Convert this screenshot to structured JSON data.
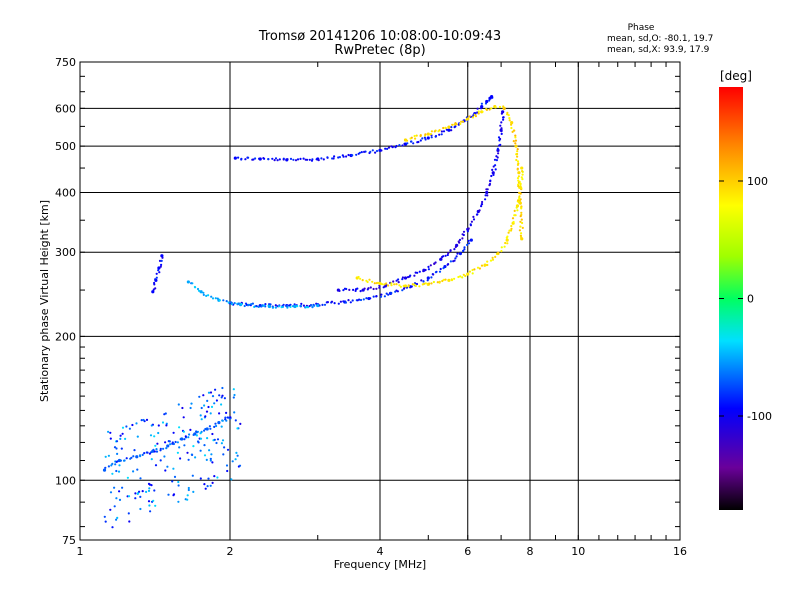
{
  "chart_data": {
    "type": "scatter",
    "title": "Tromsø 20141206 10:08:00-10:09:43",
    "subtitle": "RwPretec (8p)",
    "xlabel": "Frequency [MHz]",
    "ylabel": "Stationary phase Virtual Height [km]",
    "x_scale": "log",
    "y_scale": "log",
    "xlim": [
      1,
      16
    ],
    "ylim": [
      75,
      750
    ],
    "x_ticks": [
      1,
      2,
      4,
      6,
      8,
      10,
      16
    ],
    "x_tick_labels": [
      "1",
      "2",
      "4",
      "6",
      "8",
      "10",
      "16"
    ],
    "y_ticks": [
      75,
      100,
      200,
      300,
      400,
      500,
      600,
      750
    ],
    "y_tick_labels": [
      "75",
      "100",
      "200",
      "300",
      "400",
      "500",
      "600",
      "750"
    ],
    "grid": true,
    "phase_box": {
      "title": "Phase",
      "line_o": "mean, sd,O: -80.1, 19.7",
      "line_x": "mean, sd,X:  93.9, 17.9"
    },
    "colorbar": {
      "label": "[deg]",
      "range": [
        -180,
        180
      ],
      "ticks": [
        100,
        0,
        -100
      ],
      "tick_labels": [
        "100",
        "0",
        "-100"
      ]
    },
    "traces": [
      {
        "name": "O-F2 lower",
        "phase": -100,
        "f": [
          2.05,
          2.3,
          2.6,
          3.0,
          3.5,
          4.0,
          4.5,
          5.0,
          5.5,
          5.9,
          6.2,
          6.4,
          6.55,
          6.65,
          6.7
        ],
        "h": [
          472,
          470,
          468,
          470,
          478,
          490,
          505,
          520,
          540,
          565,
          585,
          605,
          620,
          630,
          635
        ]
      },
      {
        "name": "O-F2 upper",
        "phase": -110,
        "f": [
          3.3,
          3.7,
          4.1,
          4.5,
          4.9,
          5.3,
          5.7,
          6.0,
          6.3,
          6.55,
          6.75,
          6.9,
          7.0,
          7.05
        ],
        "h": [
          250,
          250,
          255,
          265,
          275,
          290,
          310,
          335,
          365,
          400,
          440,
          490,
          540,
          590
        ]
      },
      {
        "name": "O-F1",
        "phase": -95,
        "f": [
          2.0,
          2.3,
          2.6,
          3.0,
          3.4,
          3.8,
          4.2,
          4.6,
          5.0,
          5.4,
          5.8,
          6.1
        ],
        "h": [
          235,
          232,
          232,
          233,
          236,
          240,
          246,
          254,
          265,
          280,
          298,
          318
        ]
      },
      {
        "name": "O-F1 cyan",
        "phase": -55,
        "f": [
          1.65,
          1.75,
          1.9,
          2.1,
          2.4,
          2.7,
          3.0
        ],
        "h": [
          260,
          248,
          238,
          233,
          231,
          231,
          232
        ]
      },
      {
        "name": "X-F2",
        "phase": 95,
        "f": [
          4.5,
          5.0,
          5.5,
          6.0,
          6.4,
          6.8,
          7.1,
          7.35,
          7.5,
          7.6,
          7.65,
          7.7
        ],
        "h": [
          515,
          530,
          548,
          570,
          590,
          605,
          600,
          560,
          500,
          440,
          380,
          320
        ]
      },
      {
        "name": "X-F1",
        "phase": 90,
        "f": [
          3.6,
          4.0,
          4.5,
          5.0,
          5.5,
          6.0,
          6.5,
          6.9,
          7.2,
          7.4,
          7.55,
          7.65,
          7.7
        ],
        "h": [
          265,
          258,
          255,
          257,
          262,
          270,
          282,
          298,
          318,
          345,
          375,
          410,
          450
        ]
      },
      {
        "name": "E region",
        "phase": -75,
        "f": [
          1.12,
          1.2,
          1.3,
          1.4,
          1.5,
          1.6,
          1.7,
          1.8,
          1.9,
          2.0
        ],
        "h": [
          105,
          110,
          112,
          115,
          118,
          122,
          125,
          128,
          132,
          135
        ]
      },
      {
        "name": "Es blob",
        "phase": -100,
        "f": [
          1.4,
          1.42,
          1.44,
          1.46
        ],
        "h": [
          248,
          262,
          278,
          295
        ]
      }
    ]
  }
}
